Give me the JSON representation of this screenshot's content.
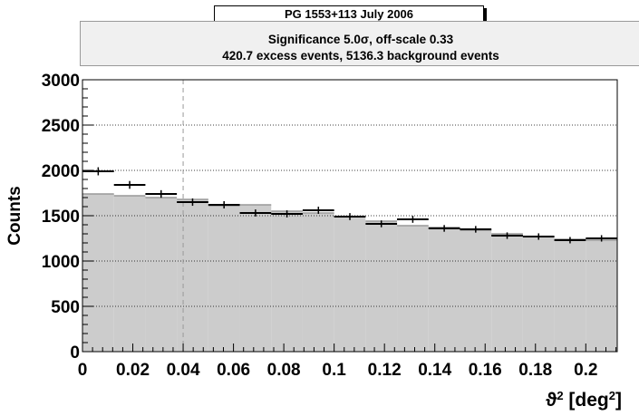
{
  "title": "PG 1553+113  July 2006",
  "stats": {
    "line1": "Significance 5.0σ,  off-scale 0.33",
    "line2": "420.7 excess events,  5136.3 background events"
  },
  "chart_data": {
    "type": "bar",
    "title": "PG 1553+113  July 2006",
    "xlabel": "ϑ² [deg²]",
    "ylabel": "Counts",
    "xlim": [
      0,
      0.2125
    ],
    "ylim": [
      0,
      3000
    ],
    "x_ticks": [
      "0",
      "0.02",
      "0.04",
      "0.06",
      "0.08",
      "0.1",
      "0.12",
      "0.14",
      "0.16",
      "0.18",
      "0.2"
    ],
    "y_ticks": [
      "0",
      "500",
      "1000",
      "1500",
      "2000",
      "2500",
      "3000"
    ],
    "grid": "horizontal",
    "cut_line_x": 0.04,
    "bin_width": 0.0125,
    "bin_centers": [
      0.00625,
      0.01875,
      0.03125,
      0.04375,
      0.05625,
      0.06875,
      0.08125,
      0.09375,
      0.10625,
      0.11875,
      0.13125,
      0.14375,
      0.15625,
      0.16875,
      0.18125,
      0.19375,
      0.20625
    ],
    "series": [
      {
        "values": [
          1740,
          1720,
          1700,
          1680,
          1610,
          1620,
          1550,
          1530,
          1490,
          1440,
          1390,
          1370,
          1340,
          1300,
          1270,
          1240,
          1230
        ]
      },
      {
        "values": [
          1990,
          1840,
          1740,
          1650,
          1620,
          1530,
          1520,
          1560,
          1490,
          1410,
          1460,
          1360,
          1350,
          1280,
          1270,
          1230,
          1250
        ]
      }
    ],
    "colors": {
      "fill": "#cccccc",
      "background_line": "#999999",
      "on": "#000000",
      "cut": "#999999"
    }
  }
}
